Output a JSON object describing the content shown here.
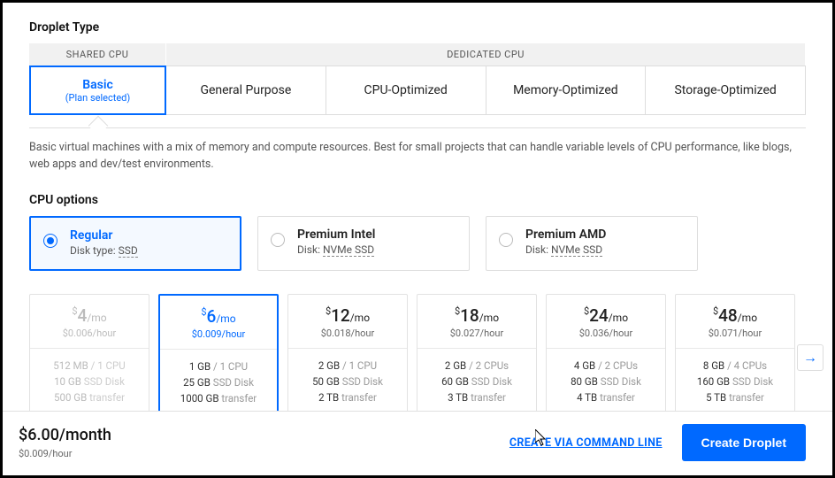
{
  "colors": {
    "accent": "#0069ff",
    "border": "#dddddd",
    "text": "#222222",
    "muted": "#777777",
    "disabled": "#bbbbbb",
    "light_bg": "#f4f9ff",
    "header_bg": "#f1f1f1"
  },
  "section": {
    "droplet_type_title": "Droplet Type",
    "shared_cpu_header": "SHARED CPU",
    "dedicated_cpu_header": "DEDICATED CPU"
  },
  "type_tabs": [
    {
      "label": "Basic",
      "sub": "(Plan selected)",
      "selected": true
    },
    {
      "label": "General Purpose",
      "sub": "",
      "selected": false
    },
    {
      "label": "CPU-Optimized",
      "sub": "",
      "selected": false
    },
    {
      "label": "Memory-Optimized",
      "sub": "",
      "selected": false
    },
    {
      "label": "Storage-Optimized",
      "sub": "",
      "selected": false
    }
  ],
  "description": "Basic virtual machines with a mix of memory and compute resources. Best for small projects that can handle variable levels of CPU performance, like blogs, web apps and dev/test environments.",
  "cpu_options_title": "CPU options",
  "cpu_options": [
    {
      "name": "Regular",
      "disk_label": "Disk type:",
      "disk_value": "SSD",
      "selected": true
    },
    {
      "name": "Premium Intel",
      "disk_label": "Disk:",
      "disk_value": "NVMe SSD",
      "selected": false
    },
    {
      "name": "Premium AMD",
      "disk_label": "Disk:",
      "disk_value": "NVMe SSD",
      "selected": false
    }
  ],
  "price_currency": "$",
  "per_month_label": "/mo",
  "per_hour_label": "/hour",
  "plans": [
    {
      "price": "4",
      "hourly": "$0.006",
      "mem": "512 MB",
      "cpu": "1 CPU",
      "disk": "10 GB",
      "disk_type": "SSD Disk",
      "transfer": "500 GB",
      "transfer_label": "transfer",
      "selected": false,
      "disabled": true
    },
    {
      "price": "6",
      "hourly": "$0.009",
      "mem": "1 GB",
      "cpu": "1 CPU",
      "disk": "25 GB",
      "disk_type": "SSD Disk",
      "transfer": "1000 GB",
      "transfer_label": "transfer",
      "selected": true,
      "disabled": false
    },
    {
      "price": "12",
      "hourly": "$0.018",
      "mem": "2 GB",
      "cpu": "1 CPU",
      "disk": "50 GB",
      "disk_type": "SSD Disk",
      "transfer": "2 TB",
      "transfer_label": "transfer",
      "selected": false,
      "disabled": false
    },
    {
      "price": "18",
      "hourly": "$0.027",
      "mem": "2 GB",
      "cpu": "2 CPUs",
      "disk": "60 GB",
      "disk_type": "SSD Disk",
      "transfer": "3 TB",
      "transfer_label": "transfer",
      "selected": false,
      "disabled": false
    },
    {
      "price": "24",
      "hourly": "$0.036",
      "mem": "4 GB",
      "cpu": "2 CPUs",
      "disk": "80 GB",
      "disk_type": "SSD Disk",
      "transfer": "4 TB",
      "transfer_label": "transfer",
      "selected": false,
      "disabled": false
    },
    {
      "price": "48",
      "hourly": "$0.071",
      "mem": "8 GB",
      "cpu": "4 CPUs",
      "disk": "160 GB",
      "disk_type": "SSD Disk",
      "transfer": "5 TB",
      "transfer_label": "transfer",
      "selected": false,
      "disabled": false
    }
  ],
  "footer": {
    "summary_price": "$6.00/month",
    "summary_hour": "$0.009/hour",
    "cli_link": "CREATE VIA COMMAND LINE",
    "create_button": "Create Droplet"
  }
}
